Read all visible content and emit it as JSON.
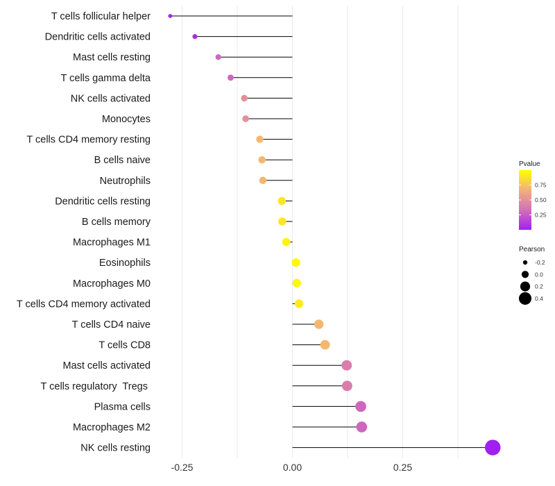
{
  "chart_data": {
    "type": "lollipop",
    "title": "",
    "xlabel": "",
    "ylabel": "",
    "xlim": [
      -0.3,
      0.46
    ],
    "xticks": [
      -0.25,
      0.0,
      0.25
    ],
    "xtick_labels": [
      "-0.25",
      "0.00",
      "0.25"
    ],
    "grid": true,
    "categories": [
      "T cells follicular helper",
      "Dendritic cells activated",
      "Mast cells resting",
      "T cells gamma delta",
      "NK cells activated",
      "Monocytes",
      "T cells CD4 memory resting",
      "B cells naive",
      "Neutrophils",
      "Dendritic cells resting",
      "B cells memory",
      "Macrophages M1",
      "Eosinophils",
      "Macrophages M0",
      "T cells CD4 memory activated",
      "T cells CD4 naive",
      "T cells CD8",
      "Mast cells activated",
      "T cells regulatory  Tregs ",
      "Plasma cells",
      "Macrophages M2",
      "NK cells resting"
    ],
    "pearson": [
      -0.277,
      -0.221,
      -0.168,
      -0.14,
      -0.109,
      -0.106,
      -0.074,
      -0.069,
      -0.067,
      -0.024,
      -0.023,
      -0.014,
      0.008,
      0.01,
      0.015,
      0.06,
      0.074,
      0.123,
      0.124,
      0.155,
      0.157,
      0.454
    ],
    "pvalue": [
      0.02,
      0.05,
      0.3,
      0.3,
      0.5,
      0.5,
      0.7,
      0.7,
      0.7,
      0.9,
      0.9,
      0.95,
      0.97,
      0.97,
      0.92,
      0.7,
      0.7,
      0.4,
      0.4,
      0.3,
      0.3,
      0.0
    ],
    "legend": {
      "position": "right",
      "pvalue": {
        "title": "Pvalue",
        "breaks": [
          0.25,
          0.5,
          0.75
        ],
        "labels": [
          "0.25",
          "0.50",
          "0.75"
        ],
        "range": [
          0.0,
          1.0
        ],
        "colors": [
          "#a020f0",
          "#d370b8",
          "#f2b07a",
          "#ffff00"
        ]
      },
      "pearson": {
        "title": "Pearson",
        "breaks": [
          -0.2,
          0.0,
          0.2,
          0.4
        ],
        "labels": [
          "-0.2",
          "0.0",
          "0.2",
          "0.4"
        ]
      }
    }
  }
}
